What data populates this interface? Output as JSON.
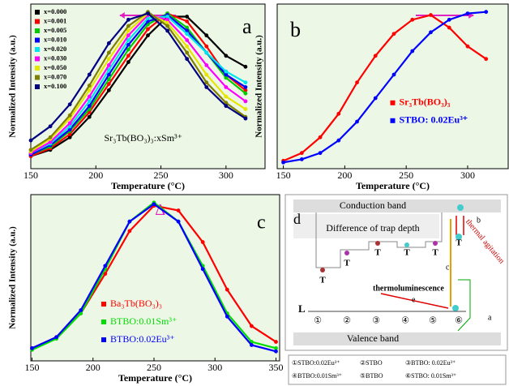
{
  "chart_data": [
    {
      "type": "line",
      "label": "a",
      "annotation": "Sr₃Tb(BO₃)₃:xSm³⁺",
      "xlabel": "Temperature (°C)",
      "ylabel": "Normalized Intensity (a.u.)",
      "x": [
        150,
        165,
        180,
        195,
        210,
        225,
        240,
        255,
        270,
        285,
        300,
        315
      ],
      "xlim": [
        150,
        330
      ],
      "xticks": [
        150,
        200,
        250,
        300
      ],
      "ylim": [
        0,
        1.05
      ],
      "legend": "upper left",
      "series": [
        {
          "name": "x=0.000",
          "color": "#000000",
          "values": [
            0.08,
            0.12,
            0.2,
            0.33,
            0.5,
            0.68,
            0.85,
            0.97,
            0.97,
            0.85,
            0.72,
            0.65
          ]
        },
        {
          "name": "x=0.001",
          "color": "#ff0000",
          "values": [
            0.08,
            0.13,
            0.22,
            0.36,
            0.54,
            0.72,
            0.89,
            0.99,
            0.94,
            0.78,
            0.6,
            0.5
          ]
        },
        {
          "name": "x=0.005",
          "color": "#00cc00",
          "values": [
            0.09,
            0.14,
            0.24,
            0.38,
            0.57,
            0.76,
            0.92,
            0.99,
            0.9,
            0.74,
            0.58,
            0.48
          ]
        },
        {
          "name": "x=0.010",
          "color": "#0000ff",
          "values": [
            0.09,
            0.15,
            0.25,
            0.4,
            0.6,
            0.79,
            0.94,
            0.98,
            0.88,
            0.74,
            0.6,
            0.52
          ]
        },
        {
          "name": "x=0.020",
          "color": "#00e5ee",
          "values": [
            0.1,
            0.16,
            0.27,
            0.43,
            0.63,
            0.82,
            0.96,
            0.97,
            0.86,
            0.74,
            0.62,
            0.55
          ]
        },
        {
          "name": "x=0.030",
          "color": "#ff00ff",
          "values": [
            0.1,
            0.17,
            0.29,
            0.46,
            0.66,
            0.85,
            0.98,
            0.95,
            0.82,
            0.66,
            0.52,
            0.43
          ]
        },
        {
          "name": "x=0.050",
          "color": "#e6e600",
          "values": [
            0.11,
            0.19,
            0.32,
            0.5,
            0.7,
            0.88,
            0.99,
            0.93,
            0.78,
            0.6,
            0.46,
            0.38
          ]
        },
        {
          "name": "x=0.070",
          "color": "#808000",
          "values": [
            0.12,
            0.2,
            0.34,
            0.53,
            0.74,
            0.91,
            1.0,
            0.91,
            0.74,
            0.55,
            0.42,
            0.33
          ]
        },
        {
          "name": "x=0.100",
          "color": "#000080",
          "values": [
            0.18,
            0.27,
            0.41,
            0.6,
            0.8,
            0.95,
            0.99,
            0.88,
            0.7,
            0.52,
            0.4,
            0.32
          ]
        }
      ]
    },
    {
      "type": "line",
      "label": "b",
      "xlabel": "Temperature (°C)",
      "ylabel": "Normalized Intensity (a.u.)",
      "x": [
        150,
        165,
        180,
        195,
        210,
        225,
        240,
        255,
        270,
        285,
        300,
        315
      ],
      "xlim": [
        145,
        333
      ],
      "xticks": [
        150,
        200,
        250,
        300
      ],
      "ylim": [
        0,
        1.05
      ],
      "legend": "center right",
      "series": [
        {
          "name": "Sr₃Tb(BO₃)₃",
          "color": "#ff0000",
          "values": [
            0.05,
            0.1,
            0.2,
            0.35,
            0.55,
            0.72,
            0.86,
            0.95,
            0.98,
            0.9,
            0.78,
            0.7
          ]
        },
        {
          "name": "STBO: 0.02Eu³⁺",
          "color": "#0000ff",
          "values": [
            0.04,
            0.06,
            0.1,
            0.18,
            0.3,
            0.45,
            0.6,
            0.75,
            0.87,
            0.95,
            0.99,
            1.0
          ]
        }
      ]
    },
    {
      "type": "line",
      "label": "c",
      "annotation": "Δ",
      "xlabel": "Temperature (°C)",
      "ylabel": "Normalized Intensity (a.u.)",
      "x": [
        150,
        170,
        190,
        210,
        230,
        250,
        270,
        290,
        310,
        330,
        350
      ],
      "xlim": [
        149,
        353
      ],
      "xticks": [
        150,
        200,
        250,
        300,
        350
      ],
      "ylim": [
        0,
        1.05
      ],
      "legend": "lower left",
      "series": [
        {
          "name": "Ba₃Tb(BO₃)₃",
          "color": "#ff0000",
          "values": [
            0.08,
            0.15,
            0.3,
            0.55,
            0.82,
            0.98,
            0.95,
            0.75,
            0.45,
            0.22,
            0.12
          ]
        },
        {
          "name": "BTBO:0.01Sm³⁺",
          "color": "#00dd00",
          "values": [
            0.07,
            0.14,
            0.3,
            0.58,
            0.88,
            1.0,
            0.88,
            0.6,
            0.3,
            0.12,
            0.08
          ]
        },
        {
          "name": "BTBO:0.02Eu³⁺",
          "color": "#0000ff",
          "values": [
            0.08,
            0.15,
            0.32,
            0.6,
            0.88,
            0.99,
            0.88,
            0.58,
            0.28,
            0.1,
            0.06
          ]
        }
      ]
    }
  ],
  "diagram": {
    "label": "d",
    "conduction_band": "Conduction band",
    "trap_depth": "Difference of trap depth",
    "traps": [
      "T",
      "T",
      "T",
      "T",
      "T",
      "T"
    ],
    "thermal": "thermal agitation",
    "arrows": [
      "a",
      "b",
      "c",
      "e"
    ],
    "thermoluminescence": "thermoluminescence",
    "level": "L",
    "samples": [
      "①",
      "②",
      "③",
      "④",
      "⑤",
      "⑥"
    ],
    "valence_band": "Valence band",
    "legend": [
      "①STBO:0.02Eu³⁺",
      "②STBO",
      "③BTBO: 0.02Eu³⁺",
      "④BTBO:0.01Sm³⁺",
      "⑤BTBO",
      "⑥STBO: 0.01Sm³⁺"
    ]
  }
}
